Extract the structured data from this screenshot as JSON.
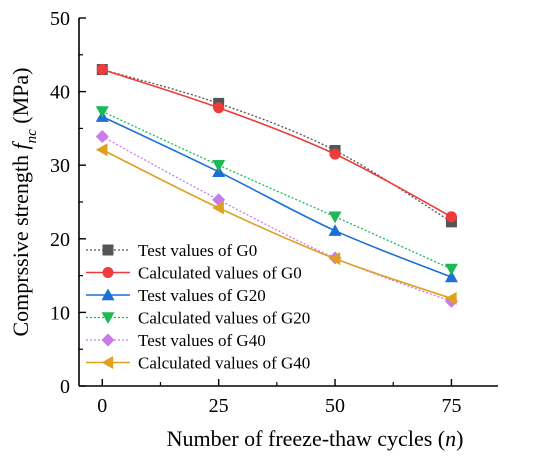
{
  "chart_data": {
    "type": "line",
    "xlabel": "Number of freeze-thaw cycles (n)",
    "xlabel_parts": [
      "Number of freeze-thaw cycles (",
      "n",
      ")"
    ],
    "ylabel": "Comprssive strength f_nc (MPa)",
    "ylabel_parts": [
      "Comprssive strength ",
      "f",
      "nc",
      " (MPa)"
    ],
    "x": [
      0,
      25,
      50,
      75
    ],
    "xlim": [
      -5,
      85
    ],
    "ylim": [
      0,
      50
    ],
    "x_ticks": [
      "0",
      "25",
      "50",
      "75"
    ],
    "y_ticks": [
      "0",
      "10",
      "20",
      "30",
      "40",
      "50"
    ],
    "grid": false,
    "legend_position": "bottom-left",
    "series": [
      {
        "name": "Test values of G0",
        "values": [
          43.0,
          38.4,
          32.0,
          22.3
        ],
        "color": "#555555",
        "marker": "square",
        "line_style": "dotted"
      },
      {
        "name": "Calculated values of G0",
        "values": [
          43.0,
          37.8,
          31.5,
          23.0
        ],
        "color": "#ee3b3b",
        "marker": "circle",
        "line_style": "solid"
      },
      {
        "name": "Test values of G20",
        "values": [
          36.6,
          29.1,
          21.1,
          14.8
        ],
        "color": "#1c6fd6",
        "marker": "triangle-up",
        "line_style": "solid"
      },
      {
        "name": "Calculated values of G20",
        "values": [
          37.3,
          30.0,
          23.0,
          15.9
        ],
        "color": "#1db954",
        "marker": "triangle-down",
        "line_style": "dotted"
      },
      {
        "name": "Test values of G40",
        "values": [
          33.9,
          25.3,
          17.4,
          11.5
        ],
        "color": "#c77ce8",
        "marker": "diamond",
        "line_style": "dotted"
      },
      {
        "name": "Calculated values of G40",
        "values": [
          32.1,
          24.2,
          17.3,
          11.9
        ],
        "color": "#e0a020",
        "marker": "triangle-left",
        "line_style": "solid"
      }
    ]
  }
}
